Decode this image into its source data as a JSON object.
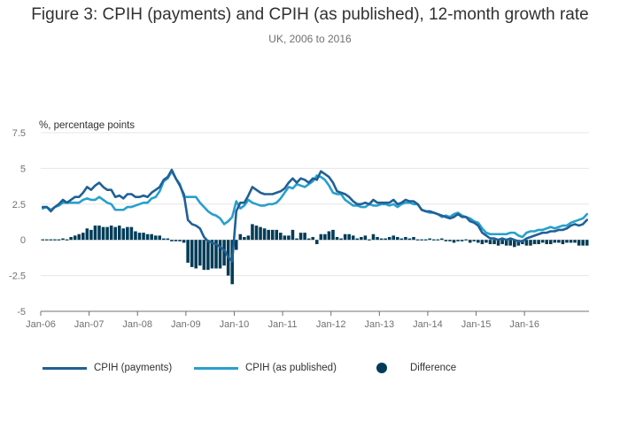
{
  "chart_data": {
    "type": "line",
    "title": "Figure 3: CPIH (payments) and CPIH (as published), 12-month growth rate",
    "subtitle": "UK, 2006 to 2016",
    "ylabel": "%, percentage points",
    "xlabel": "",
    "ylim": [
      -5,
      7.5
    ],
    "yticks": [
      {
        "value": 7.5,
        "label": "7.5"
      },
      {
        "value": 5,
        "label": "5"
      },
      {
        "value": 2.5,
        "label": "2.5"
      },
      {
        "value": 0,
        "label": "0"
      },
      {
        "value": -2.5,
        "label": "-2.5"
      },
      {
        "value": -5,
        "label": "-5"
      }
    ],
    "xticks": [
      "Jan-06",
      "Jan-07",
      "Jan-08",
      "Jan-09",
      "Jan-10",
      "Jan-11",
      "Jan-12",
      "Jan-13",
      "Jan-14",
      "Jan-15",
      "Jan-16"
    ],
    "x_start": "Jan-06",
    "x_end": "Dec-16",
    "series": [
      {
        "name": "CPIH (payments)",
        "kind": "line",
        "color": "#206095",
        "values": [
          2.3,
          2.3,
          2.0,
          2.3,
          2.5,
          2.8,
          2.6,
          2.8,
          3.0,
          3.0,
          3.3,
          3.7,
          3.5,
          3.8,
          4.0,
          3.7,
          3.5,
          3.5,
          3.0,
          3.1,
          2.9,
          3.2,
          3.2,
          3.0,
          3.0,
          3.1,
          3.0,
          3.3,
          3.5,
          3.7,
          4.2,
          4.4,
          4.9,
          4.3,
          3.8,
          3.2,
          1.4,
          1.1,
          1.0,
          0.8,
          0.2,
          -0.1,
          -0.2,
          -0.3,
          -0.5,
          -0.7,
          -1.2,
          -1.5,
          2.0,
          2.6,
          2.6,
          3.1,
          3.7,
          3.5,
          3.3,
          3.2,
          3.2,
          3.2,
          3.3,
          3.4,
          3.6,
          4.0,
          4.3,
          4.0,
          4.3,
          4.2,
          4.0,
          4.3,
          4.2,
          4.8,
          4.6,
          4.4,
          4.0,
          3.4,
          3.3,
          3.2,
          3.0,
          2.7,
          2.5,
          2.5,
          2.6,
          2.5,
          2.8,
          2.6,
          2.6,
          2.6,
          2.6,
          2.8,
          2.5,
          2.6,
          2.8,
          2.7,
          2.7,
          2.5,
          2.1,
          2.0,
          2.0,
          1.9,
          1.8,
          1.7,
          1.6,
          1.5,
          1.6,
          1.8,
          1.6,
          1.6,
          1.3,
          1.2,
          1.0,
          0.5,
          0.3,
          0.1,
          0.1,
          0.0,
          0.1,
          0.0,
          0.1,
          0.0,
          -0.1,
          -0.1,
          0.1,
          0.2,
          0.3,
          0.4,
          0.5,
          0.5,
          0.6,
          0.6,
          0.7,
          0.7,
          0.8,
          1.0,
          1.1,
          1.0,
          1.1,
          1.4
        ],
        "legend_label": "CPIH (payments)"
      },
      {
        "name": "CPIH (as published)",
        "kind": "line",
        "color": "#27a0cc",
        "values": [
          2.2,
          2.3,
          2.1,
          2.3,
          2.4,
          2.6,
          2.6,
          2.6,
          2.6,
          2.6,
          2.8,
          2.9,
          2.8,
          2.8,
          3.0,
          2.8,
          2.6,
          2.5,
          2.1,
          2.1,
          2.1,
          2.3,
          2.3,
          2.4,
          2.5,
          2.6,
          2.6,
          2.9,
          3.0,
          3.4,
          4.1,
          4.3,
          4.8,
          4.3,
          3.9,
          3.0,
          3.0,
          3.0,
          3.0,
          2.6,
          2.3,
          2.0,
          1.8,
          1.7,
          1.5,
          1.1,
          1.3,
          1.6,
          2.7,
          2.2,
          2.4,
          2.8,
          2.6,
          2.5,
          2.4,
          2.4,
          2.5,
          2.5,
          2.6,
          2.9,
          3.3,
          3.7,
          3.6,
          3.9,
          3.8,
          3.7,
          3.9,
          4.1,
          4.5,
          4.4,
          4.2,
          3.8,
          3.3,
          3.2,
          3.2,
          2.8,
          2.6,
          2.4,
          2.4,
          2.3,
          2.3,
          2.5,
          2.4,
          2.4,
          2.5,
          2.5,
          2.4,
          2.5,
          2.3,
          2.5,
          2.6,
          2.6,
          2.5,
          2.5,
          2.1,
          2.0,
          1.9,
          1.9,
          1.8,
          1.6,
          1.7,
          1.6,
          1.8,
          1.9,
          1.7,
          1.6,
          1.5,
          1.3,
          1.2,
          0.8,
          0.5,
          0.4,
          0.4,
          0.4,
          0.4,
          0.4,
          0.5,
          0.5,
          0.3,
          0.2,
          0.5,
          0.6,
          0.6,
          0.7,
          0.7,
          0.8,
          0.9,
          0.8,
          0.9,
          1.0,
          1.0,
          1.2,
          1.3,
          1.4,
          1.5,
          1.8
        ],
        "legend_label": "CPIH (as published)"
      },
      {
        "name": "Difference",
        "kind": "bar",
        "color": "#003c57",
        "values": [
          0.05,
          0.0,
          -0.05,
          0.0,
          0.05,
          0.1,
          0.0,
          0.2,
          0.3,
          0.4,
          0.5,
          0.8,
          0.7,
          1.0,
          1.0,
          0.9,
          0.9,
          1.0,
          0.9,
          1.0,
          0.8,
          0.9,
          0.9,
          0.6,
          0.5,
          0.5,
          0.4,
          0.4,
          0.3,
          0.3,
          0.1,
          0.1,
          -0.1,
          -0.1,
          -0.1,
          -0.2,
          -1.6,
          -1.9,
          -2.0,
          -1.8,
          -2.1,
          -2.1,
          -2.0,
          -2.0,
          -2.0,
          -1.8,
          -2.5,
          -3.1,
          -0.7,
          0.4,
          0.2,
          0.3,
          1.1,
          1.0,
          0.9,
          0.8,
          0.7,
          0.7,
          0.7,
          0.5,
          0.3,
          0.3,
          0.7,
          0.1,
          0.5,
          0.5,
          0.1,
          0.2,
          -0.3,
          0.4,
          0.4,
          0.6,
          0.7,
          0.2,
          0.1,
          0.4,
          0.4,
          0.3,
          0.1,
          0.2,
          0.3,
          0.0,
          0.4,
          0.2,
          0.1,
          0.1,
          0.2,
          0.3,
          0.2,
          0.1,
          0.2,
          0.1,
          0.2,
          0.0,
          0.0,
          0.0,
          0.1,
          0.0,
          0.0,
          0.1,
          -0.1,
          -0.1,
          -0.2,
          -0.1,
          -0.1,
          0.0,
          -0.2,
          -0.1,
          -0.2,
          -0.3,
          -0.2,
          -0.3,
          -0.3,
          -0.4,
          -0.3,
          -0.4,
          -0.4,
          -0.5,
          -0.4,
          -0.3,
          -0.4,
          -0.4,
          -0.3,
          -0.3,
          -0.2,
          -0.3,
          -0.3,
          -0.2,
          -0.2,
          -0.3,
          -0.2,
          -0.2,
          -0.2,
          -0.4,
          -0.4,
          -0.4
        ],
        "legend_label": "Difference"
      }
    ],
    "legend_position": "bottom",
    "grid": true
  }
}
